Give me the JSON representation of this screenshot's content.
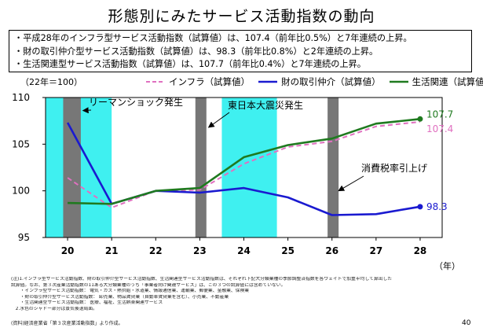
{
  "title": "形態別にみたサービス活動指数の動向",
  "summary": [
    "・平成28年のインフラ型サービス活動指数（試算値）は、107.4（前年比0.5%）と7年連続の上昇。",
    "・財の取引仲介型サービス活動指数（試算値）は、98.3（前年比0.8%）と2年連続の上昇。",
    "・生活関連型サービス活動指数（試算値）は、107.7（前年比0.4%）と7年連続の上昇。"
  ],
  "colors": {
    "infra": "#e070c0",
    "trade": "#1a1ad0",
    "life": "#1f7a1f",
    "band_cyan": "#3ff0f0",
    "band_gray": "#777777"
  },
  "chart_data": {
    "type": "line",
    "unit_note": "（22年＝100）",
    "x": [
      20,
      21,
      22,
      23,
      24,
      25,
      26,
      27,
      28
    ],
    "x_unit": "（年）",
    "ylim": [
      95,
      110
    ],
    "yticks": [
      95,
      100,
      105,
      110
    ],
    "series": [
      {
        "name": "インフラ（試算値）",
        "style": "dashed",
        "values": [
          101.4,
          98.2,
          100.0,
          100.1,
          102.9,
          104.7,
          105.3,
          106.9,
          107.4
        ]
      },
      {
        "name": "財の取引仲介（試算値）",
        "style": "solid",
        "values": [
          107.3,
          98.6,
          100.0,
          99.8,
          100.3,
          99.3,
          97.4,
          97.5,
          98.3
        ]
      },
      {
        "name": "生活関連（試算値）",
        "style": "solid",
        "values": [
          98.7,
          98.6,
          100.0,
          100.3,
          103.6,
          104.9,
          105.6,
          107.2,
          107.7
        ]
      }
    ],
    "end_labels": [
      "107.4",
      "98.3",
      "107.7"
    ],
    "bands": [
      {
        "from": 19.9,
        "to": 20.3,
        "kind": "gray"
      },
      {
        "from": 22.9,
        "to": 23.15,
        "kind": "gray"
      },
      {
        "from": 25.9,
        "to": 26.15,
        "kind": "gray"
      },
      {
        "from": 19.5,
        "to": 21.0,
        "kind": "cyan"
      },
      {
        "from": 23.5,
        "to": 24.75,
        "kind": "cyan"
      }
    ],
    "annotations": [
      {
        "text": "リーマンショック発生",
        "point": [
          20.35,
          108.6
        ]
      },
      {
        "text": "東日本大震災発生",
        "point": [
          23.2,
          106.8
        ]
      },
      {
        "text": "消費税率引上げ",
        "point": [
          26.15,
          100.0
        ]
      }
    ]
  },
  "footnotes": [
    "(注)1.インフラ型サービス活動指数、財の取引仲介型サービス活動指数、生活関連型サービス活動指数は、それぞれ下記大分類業種の季節調整済指数を各ウェイトで加重平均して算出した",
    "    試算値。なお、第３次産業活動指数の11ある大分類業種のうち「事業者向け関連サービス」は、この３つの試算値には含めていない。",
    "　　・インフラ型サービス活動指数： 電気・ガス・熱供給・水道業、情報通信業、運輸業、郵便業、金融業、保険業",
    "　　・財の取引仲介型サービス活動指数： 卸売業、物品賃貸業（自動車賃貸業を含む）、小売業、不動産業",
    "　　・生活関連型サービス活動指数： 医療、福祉、生活娯楽関連サービス",
    "　2.水色のシャドー部分は景気後退局面。"
  ],
  "source": "(資料)経済産業省「第３次産業活動指数」より作成。",
  "page_number": "40"
}
